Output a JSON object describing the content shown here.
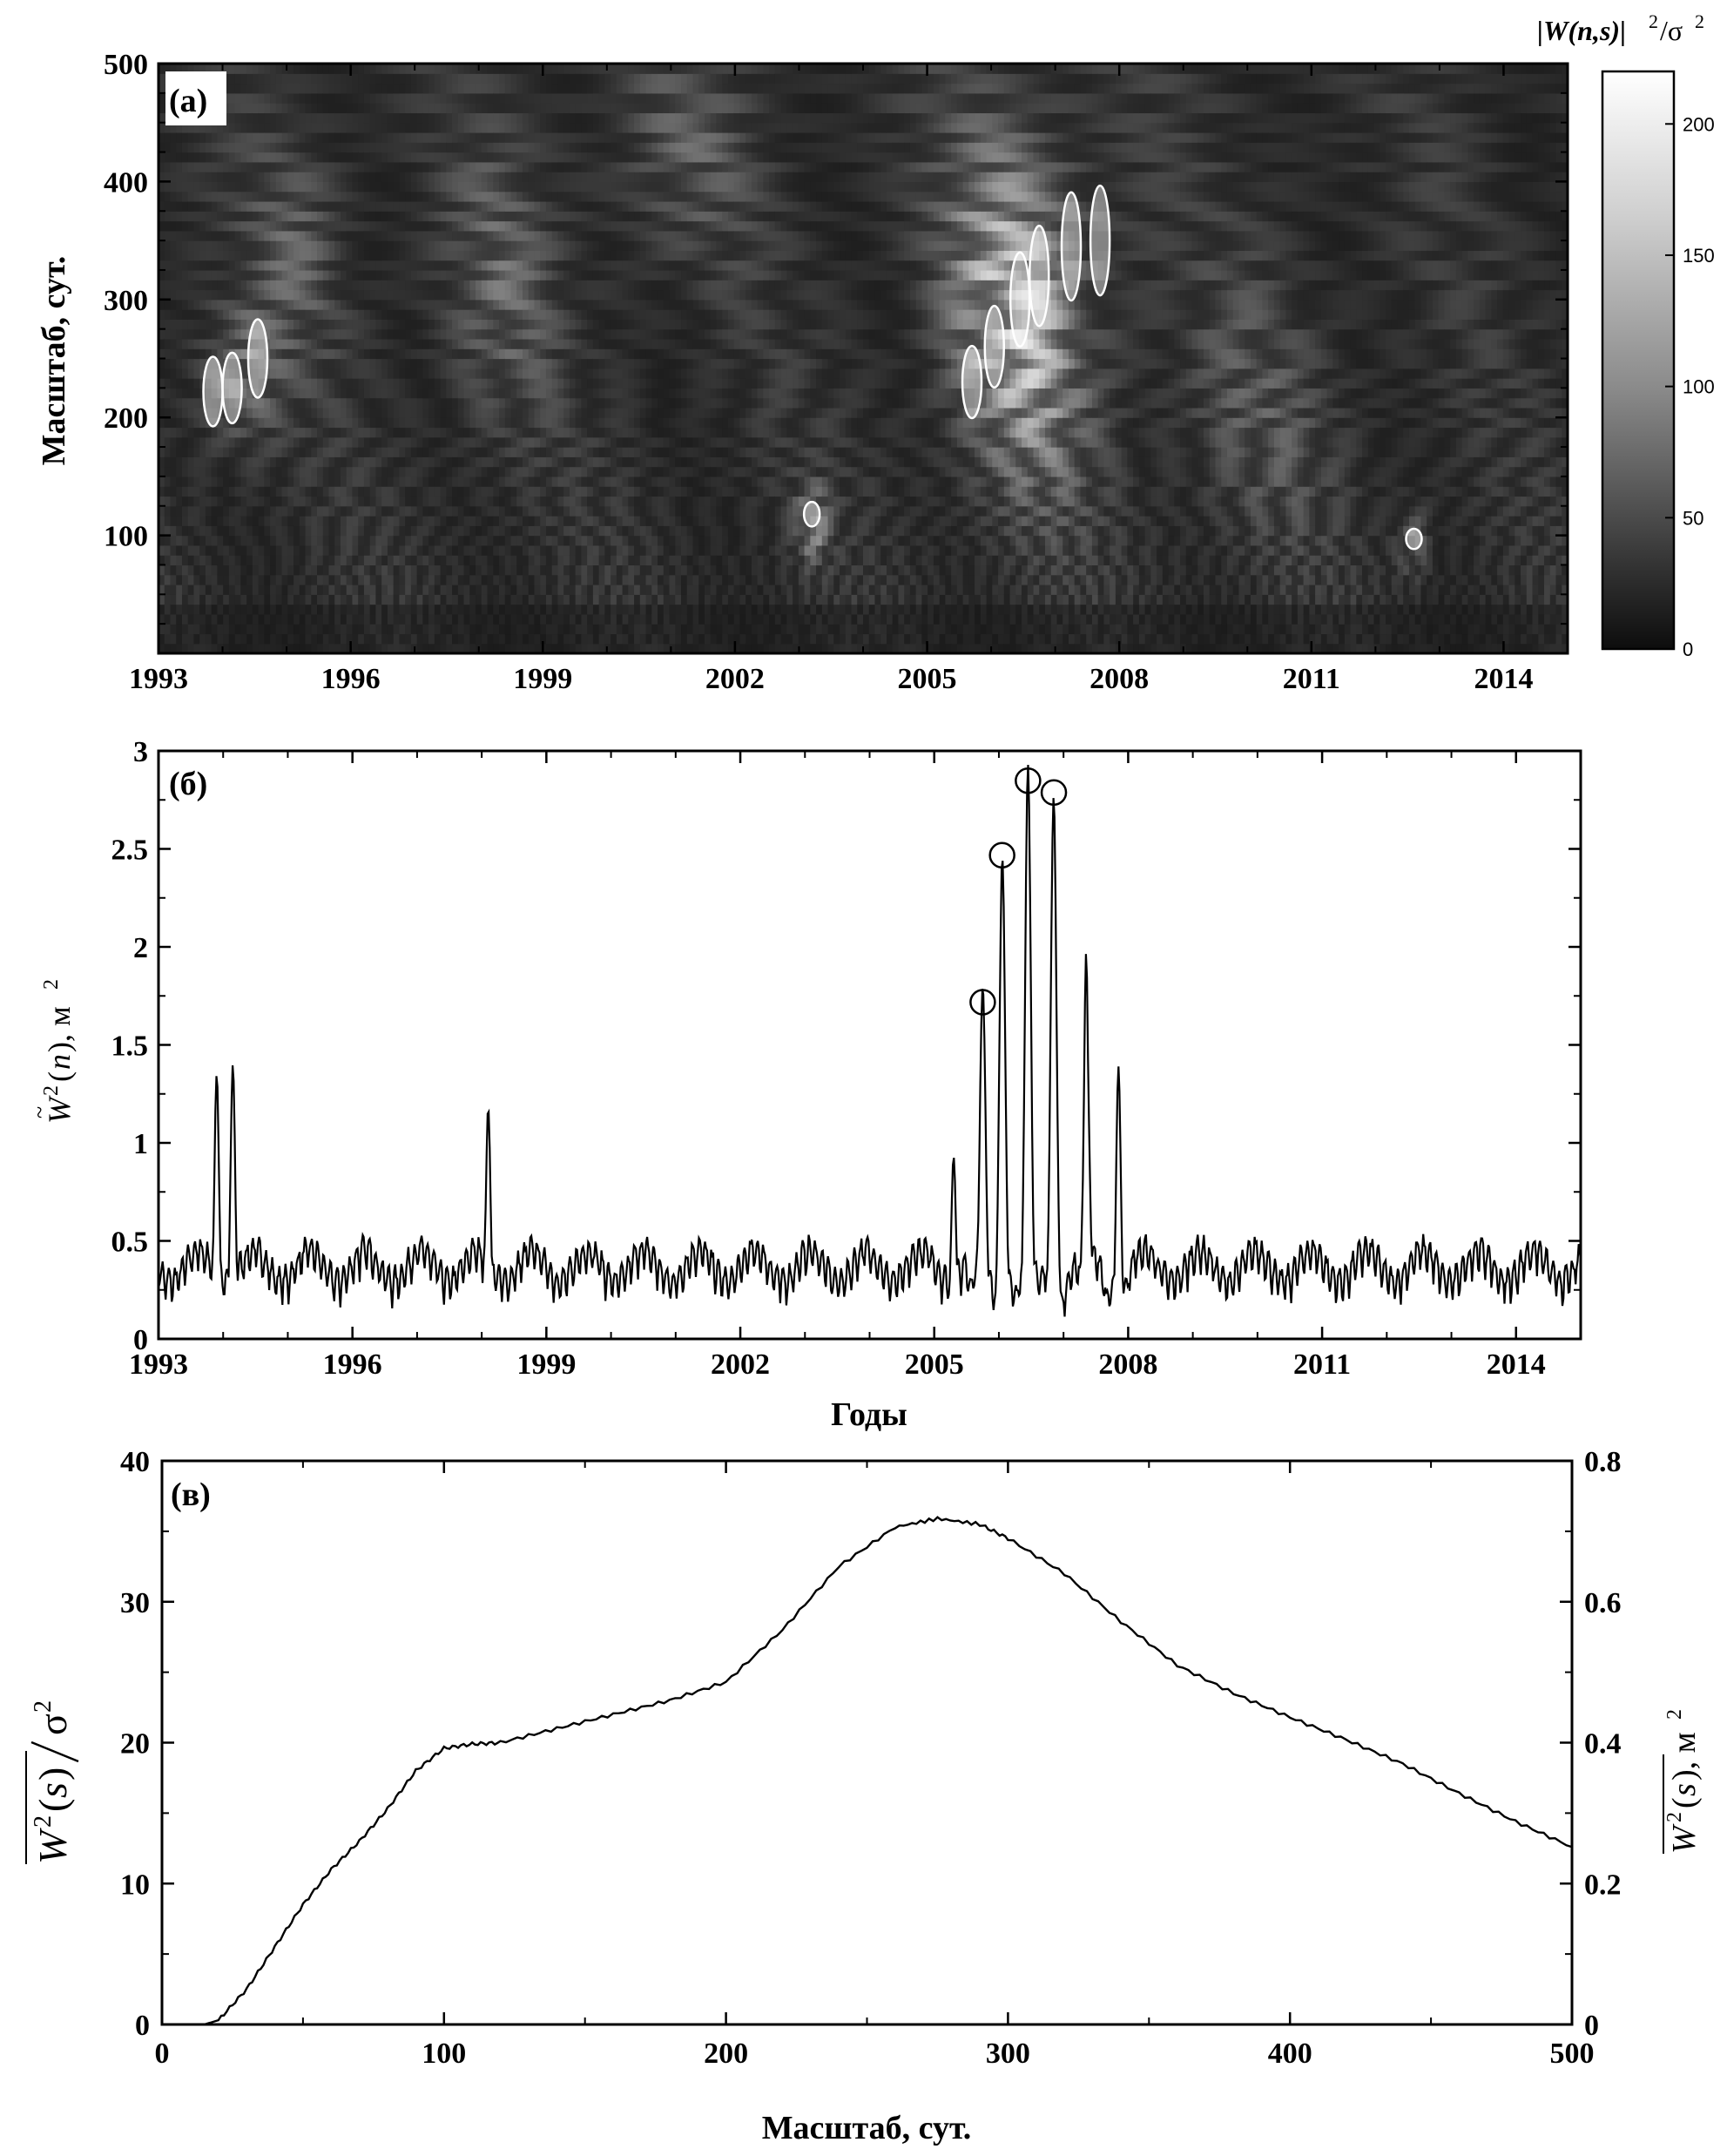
{
  "chart_data": [
    {
      "panel": "(a)",
      "type": "heatmap",
      "xlabel": "",
      "ylabel": "Масштаб, сут.",
      "xticks": [
        "1993",
        "1996",
        "1999",
        "2002",
        "2005",
        "2008",
        "2011",
        "2014"
      ],
      "xlim": [
        1993,
        2015
      ],
      "yticks": [
        "100",
        "200",
        "300",
        "400",
        "500"
      ],
      "ylim": [
        0,
        500
      ],
      "colorbar": {
        "title": "|W(n,s)|²/σ²",
        "ticks": [
          "0",
          "50",
          "100",
          "150",
          "200"
        ],
        "range": [
          0,
          220
        ]
      },
      "colors": {
        "low": "#1a1a1a",
        "high": "#ffffff",
        "contour": "#ffffff"
      },
      "highlight_contours": [
        {
          "x": 1993.85,
          "y": 222
        },
        {
          "x": 1994.15,
          "y": 225
        },
        {
          "x": 1994.55,
          "y": 250
        },
        {
          "x": 2003.2,
          "y": 118
        },
        {
          "x": 2005.7,
          "y": 230
        },
        {
          "x": 2006.05,
          "y": 260
        },
        {
          "x": 2006.45,
          "y": 300
        },
        {
          "x": 2006.75,
          "y": 320
        },
        {
          "x": 2007.25,
          "y": 345
        },
        {
          "x": 2007.7,
          "y": 350
        },
        {
          "x": 2012.6,
          "y": 97
        }
      ]
    },
    {
      "panel": "(б)",
      "type": "line",
      "xlabel": "Годы",
      "ylabel": "W̃²(n), м²",
      "xticks": [
        "1993",
        "1996",
        "1999",
        "2002",
        "2005",
        "2008",
        "2011",
        "2014"
      ],
      "xlim": [
        1993,
        2015
      ],
      "yticks": [
        "0",
        "0.5",
        "1",
        "1.5",
        "2",
        "2.5",
        "3"
      ],
      "ylim": [
        0,
        3
      ],
      "peaks": [
        {
          "x": 1993.9,
          "y": 1.25
        },
        {
          "x": 1994.15,
          "y": 1.3
        },
        {
          "x": 1998.1,
          "y": 1.08
        },
        {
          "x": 2005.3,
          "y": 0.83
        },
        {
          "x": 2005.75,
          "y": 1.7
        },
        {
          "x": 2006.05,
          "y": 2.45
        },
        {
          "x": 2006.45,
          "y": 2.83
        },
        {
          "x": 2006.85,
          "y": 2.77
        },
        {
          "x": 2007.35,
          "y": 1.97
        },
        {
          "x": 2007.85,
          "y": 1.29
        }
      ],
      "circled_peaks": [
        {
          "x": 2005.75,
          "y": 1.7
        },
        {
          "x": 2006.05,
          "y": 2.45
        },
        {
          "x": 2006.45,
          "y": 2.83
        },
        {
          "x": 2006.85,
          "y": 2.77
        }
      ]
    },
    {
      "panel": "(в)",
      "type": "line",
      "xlabel": "Масштаб, сут.",
      "ylabel_left": "W²(s)/σ²",
      "ylabel_right": "W²(s), м²",
      "xticks": [
        "0",
        "100",
        "200",
        "300",
        "400",
        "500"
      ],
      "xlim": [
        0,
        500
      ],
      "yticks_left": [
        "0",
        "10",
        "20",
        "30",
        "40"
      ],
      "ylim_left": [
        0,
        40
      ],
      "yticks_right": [
        "0",
        "0.2",
        "0.4",
        "0.6",
        "0.8"
      ],
      "ylim_right": [
        0,
        0.8
      ],
      "x": [
        15,
        20,
        30,
        40,
        50,
        60,
        70,
        80,
        90,
        100,
        110,
        120,
        140,
        160,
        180,
        200,
        220,
        240,
        260,
        275,
        290,
        300,
        320,
        340,
        360,
        380,
        400,
        420,
        440,
        460,
        480,
        500
      ],
      "y": [
        0,
        0.3,
        2.5,
        5.5,
        8.5,
        11,
        13,
        15.3,
        18,
        19.6,
        19.9,
        20,
        21,
        22,
        23,
        24.3,
        28,
        32.5,
        35.3,
        35.9,
        35.5,
        34.5,
        32,
        28.6,
        25.5,
        23.5,
        21.8,
        20.2,
        18.5,
        16.4,
        14.4,
        12.6
      ]
    }
  ]
}
